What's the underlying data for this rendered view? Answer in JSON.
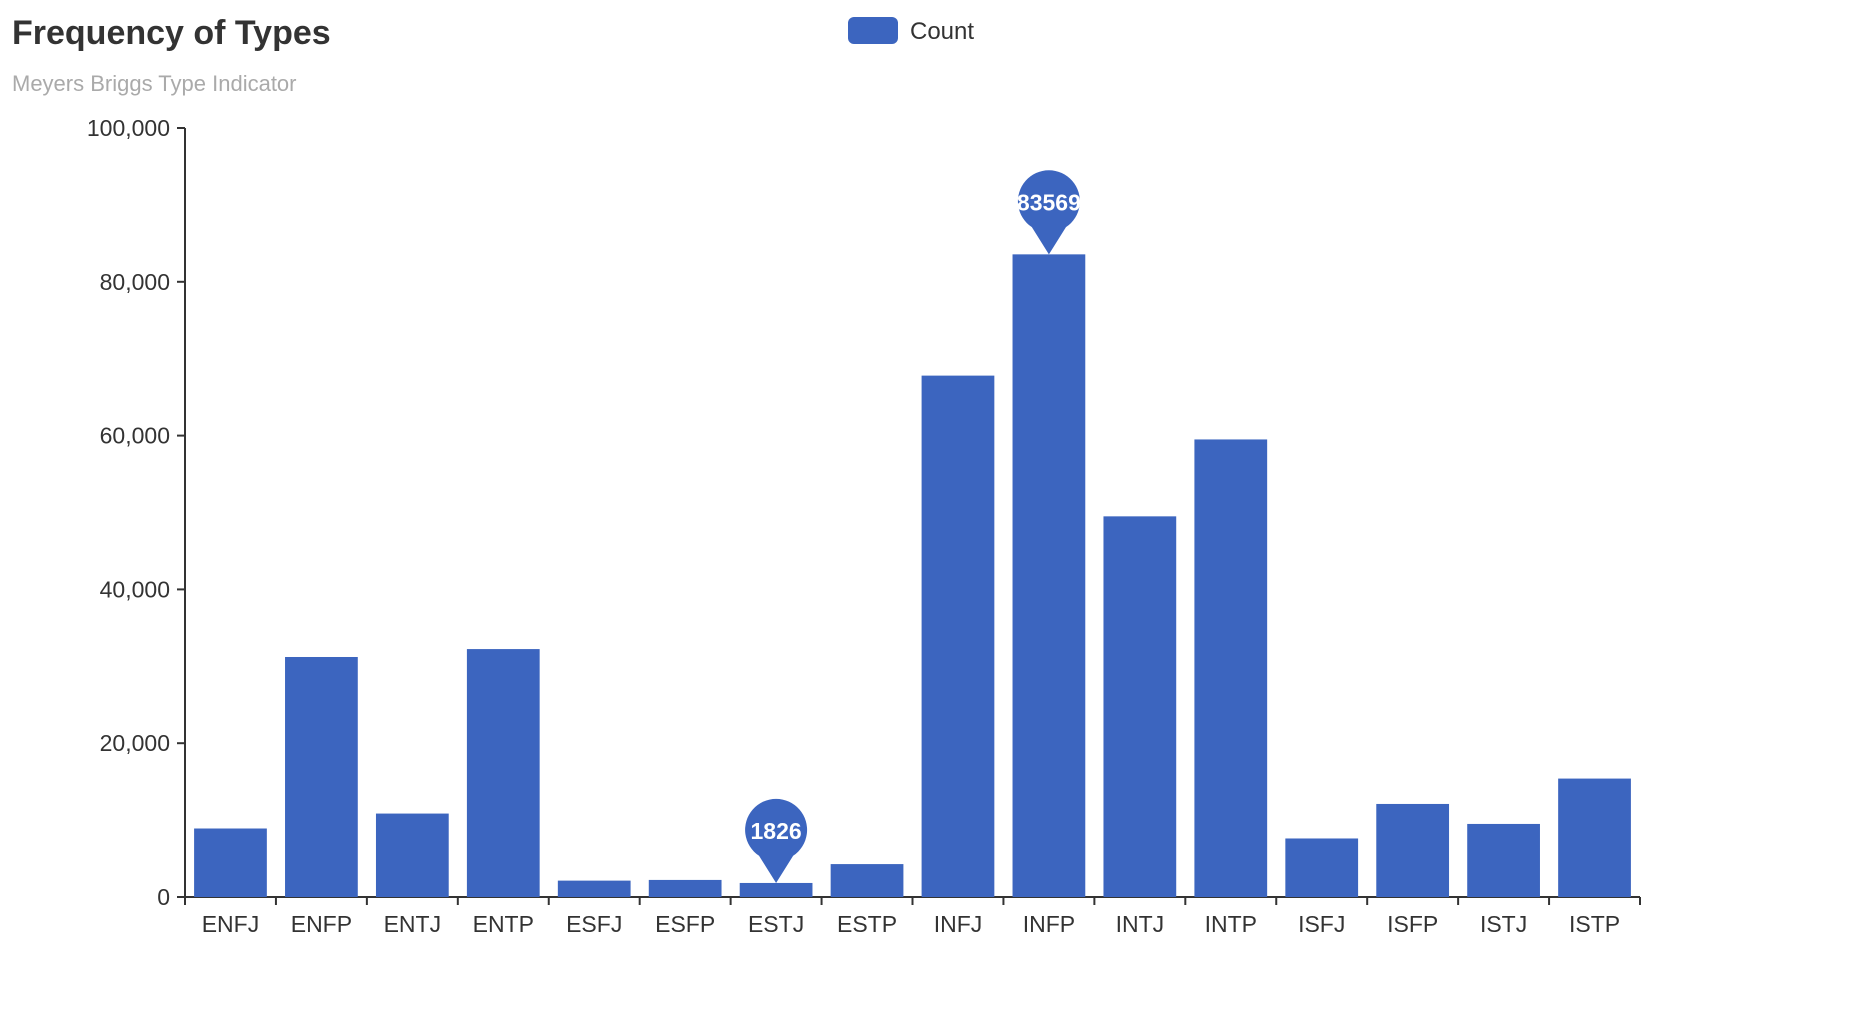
{
  "chart_data": {
    "type": "bar",
    "title": "Frequency of Types",
    "subtitle": "Meyers Briggs Type Indicator",
    "legend": {
      "position": "top-center",
      "entries": [
        {
          "name": "Count",
          "color": "#3c65bf"
        }
      ]
    },
    "categories": [
      "ENFJ",
      "ENFP",
      "ENTJ",
      "ENTP",
      "ESFJ",
      "ESFP",
      "ESTJ",
      "ESTP",
      "INFJ",
      "INFP",
      "INTJ",
      "INTP",
      "ISFJ",
      "ISFP",
      "ISTJ",
      "ISTP"
    ],
    "series": [
      {
        "name": "Count",
        "color": "#3c65bf",
        "values": [
          8907,
          31210,
          10850,
          32240,
          2130,
          2220,
          1826,
          4280,
          67800,
          83569,
          49500,
          59500,
          7610,
          12100,
          9500,
          15400
        ]
      }
    ],
    "markers": [
      {
        "category": "INFP",
        "value": 83569,
        "label": "83569",
        "kind": "max"
      },
      {
        "category": "ESTJ",
        "value": 1826,
        "label": "1826",
        "kind": "min"
      }
    ],
    "ylim": [
      0,
      100000
    ],
    "yticks": [
      {
        "value": 0,
        "label": "0"
      },
      {
        "value": 20000,
        "label": "20,000"
      },
      {
        "value": 40000,
        "label": "40,000"
      },
      {
        "value": 60000,
        "label": "60,000"
      },
      {
        "value": 80000,
        "label": "80,000"
      },
      {
        "value": 100000,
        "label": "100,000"
      }
    ],
    "grid": false,
    "xlabel": "",
    "ylabel": ""
  }
}
